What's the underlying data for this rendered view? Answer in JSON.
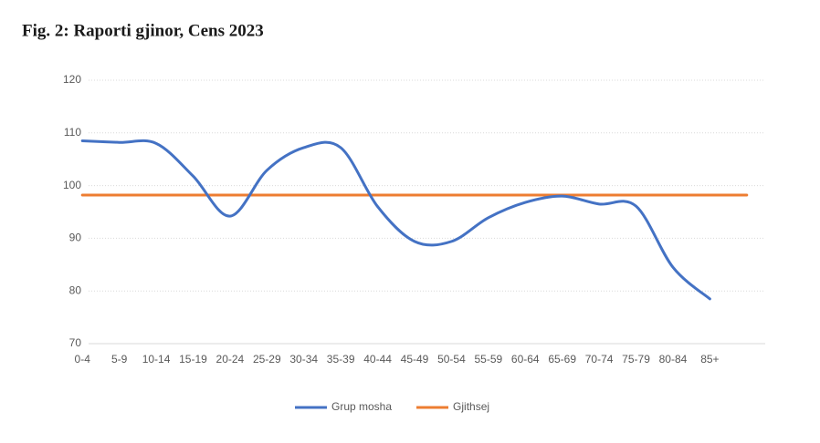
{
  "chart_data": {
    "type": "line",
    "title": "Fig. 2: Raporti gjinor, Cens 2023",
    "categories": [
      "0-4",
      "5-9",
      "10-14",
      "15-19",
      "20-24",
      "25-29",
      "30-34",
      "35-39",
      "40-44",
      "45-49",
      "50-54",
      "55-59",
      "60-64",
      "65-69",
      "70-74",
      "75-79",
      "80-84",
      "85+",
      null
    ],
    "series": [
      {
        "name": "Grup mosha",
        "color": "#4472c4",
        "values": [
          108.5,
          108.2,
          108.0,
          101.8,
          94.2,
          102.9,
          107.2,
          107.2,
          96.0,
          89.4,
          89.4,
          93.9,
          96.8,
          98.0,
          96.5,
          96.1,
          84.5,
          78.5,
          null
        ]
      },
      {
        "name": "Gjithsej",
        "color": "#ed7d31",
        "values": [
          98.2,
          98.2,
          98.2,
          98.2,
          98.2,
          98.2,
          98.2,
          98.2,
          98.2,
          98.2,
          98.2,
          98.2,
          98.2,
          98.2,
          98.2,
          98.2,
          98.2,
          98.2,
          98.2
        ]
      }
    ],
    "ylim": [
      70,
      120
    ],
    "yticks": [
      70,
      80,
      90,
      100,
      110,
      120
    ],
    "grid": true,
    "legend": "bottom"
  }
}
